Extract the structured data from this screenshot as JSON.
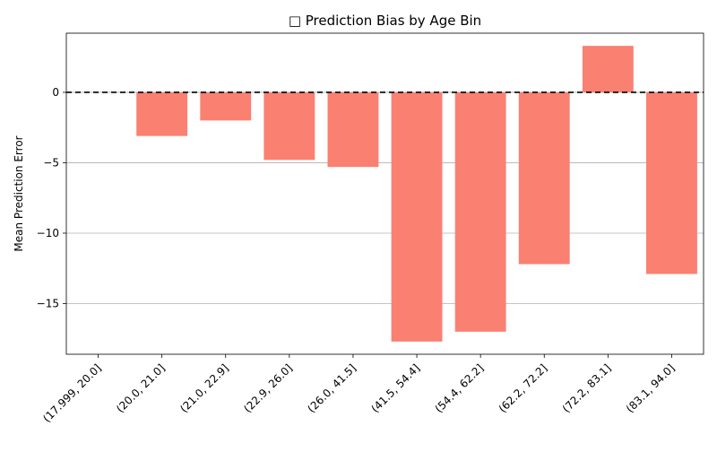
{
  "chart_data": {
    "type": "bar",
    "title": "□ Prediction Bias by Age Bin",
    "xlabel": "",
    "ylabel": "Mean Prediction Error",
    "categories": [
      "(17.999, 20.0]",
      "(20.0, 21.0]",
      "(21.0, 22.9]",
      "(22.9, 26.0]",
      "(26.0, 41.5]",
      "(41.5, 54.4]",
      "(54.4, 62.2]",
      "(62.2, 72.2]",
      "(72.2, 83.1]",
      "(83.1, 94.0]"
    ],
    "values": [
      0,
      -3.1,
      -2.0,
      -4.8,
      -5.3,
      -17.7,
      -17.0,
      -12.2,
      3.3,
      -12.9
    ],
    "ylim": [
      -18.6,
      4.2
    ],
    "yticks": [
      0,
      -5,
      -10,
      -15
    ],
    "ytick_labels": [
      "0",
      "−5",
      "−10",
      "−15"
    ],
    "grid": "y-axis",
    "reference_line": {
      "y": 0,
      "style": "dashed",
      "color": "#000000"
    },
    "bar_color": "#fa8072"
  }
}
